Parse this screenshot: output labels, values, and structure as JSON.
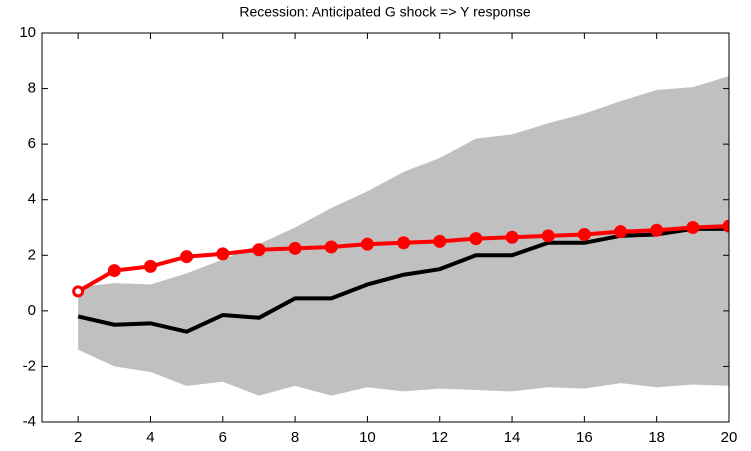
{
  "chart_data": {
    "type": "line",
    "title": "Recession: Anticipated G shock => Y response",
    "x": [
      2,
      3,
      4,
      5,
      6,
      7,
      8,
      9,
      10,
      11,
      12,
      13,
      14,
      15,
      16,
      17,
      18,
      19,
      20
    ],
    "band": {
      "color": "#c0c0c0",
      "upper": [
        0.85,
        1.0,
        0.95,
        1.35,
        1.85,
        2.4,
        3.0,
        3.7,
        4.3,
        5.0,
        5.5,
        6.2,
        6.35,
        6.75,
        7.1,
        7.55,
        7.95,
        8.05,
        8.45
      ],
      "lower": [
        -1.4,
        -2.0,
        -2.2,
        -2.7,
        -2.55,
        -3.05,
        -2.7,
        -3.05,
        -2.75,
        -2.9,
        -2.8,
        -2.85,
        -2.9,
        -2.75,
        -2.8,
        -2.6,
        -2.75,
        -2.65,
        -2.7
      ]
    },
    "series": [
      {
        "color": "#000000",
        "marker": false,
        "values": [
          -0.2,
          -0.5,
          -0.45,
          -0.75,
          -0.15,
          -0.25,
          0.45,
          0.45,
          0.95,
          1.3,
          1.5,
          2.0,
          2.0,
          2.45,
          2.45,
          2.7,
          2.75,
          2.95,
          2.95
        ]
      },
      {
        "color": "#ff0000",
        "marker": true,
        "values": [
          0.7,
          1.45,
          1.6,
          1.95,
          2.05,
          2.2,
          2.25,
          2.3,
          2.4,
          2.45,
          2.5,
          2.6,
          2.65,
          2.7,
          2.75,
          2.85,
          2.9,
          3.0,
          3.05
        ]
      }
    ],
    "xlim": [
      1,
      20
    ],
    "xticks": [
      2,
      4,
      6,
      8,
      10,
      12,
      14,
      16,
      18,
      20
    ],
    "ylim": [
      -4,
      10
    ],
    "yticks": [
      -4,
      -2,
      0,
      2,
      4,
      6,
      8,
      10
    ]
  }
}
